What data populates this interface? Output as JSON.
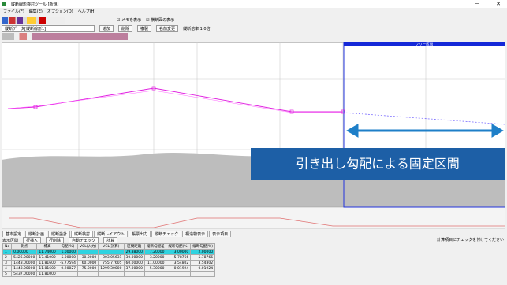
{
  "window": {
    "title": "縦断線形検討ツール [新規]"
  },
  "menu": [
    "ファイル(F)",
    "編集(E)",
    "オプション(O)",
    "ヘルプ(H)"
  ],
  "toolbar": {
    "checkboxes": [
      "メモを表示",
      "横断図の表示"
    ]
  },
  "view": {
    "combo": "縦断データ[縦断線形1]",
    "buttons": [
      "追加",
      "削除",
      "複製",
      "名前変更"
    ],
    "label": "縦断倍率 1.0倍"
  },
  "chart": {
    "selection_label": "フリー区間",
    "callout": "引き出し勾配による固定区間"
  },
  "tabs": [
    "基本設定",
    "縦断計画",
    "縦断設計",
    "縦断検討",
    "縦断レイアウト",
    "帳票出力",
    "縦断チェック",
    "構造物表示",
    "表示項目"
  ],
  "controls": {
    "label": "表示区間",
    "buttons": [
      "行挿入",
      "行削除",
      "自動チェック",
      "計算"
    ]
  },
  "table": {
    "headers": [
      "No",
      "測点",
      "標高",
      "勾配(%)",
      "VCL(入力)",
      "VCL(計算)",
      "区間距離",
      "縦断勾配差",
      "縦断勾配(%)",
      "縦断勾配(%)"
    ],
    "rows": [
      [
        "1",
        "0.00000",
        "11.74000",
        "1.00000",
        "",
        "",
        "29.88000",
        "7.20000",
        "3.00000",
        "2.00000"
      ],
      [
        "2",
        "5426.00000",
        "17.41000",
        "5.00000",
        "30.0000",
        "303.05631",
        "30.00000",
        "3.20000",
        "5.78766",
        "5.78766"
      ],
      [
        "3",
        "1448.00000",
        "11.81600",
        "-5.77594",
        "60.0000",
        "755.77605",
        "60.00000",
        "11.00000",
        "3.54802",
        "3.54802"
      ],
      [
        "4",
        "1448.00000",
        "11.81600",
        "-0.20027",
        "75.0000",
        "1299.30000",
        "37.00000",
        "5.30000",
        "0.01924",
        "0.01924"
      ],
      [
        "5",
        "5437.00000",
        "11.81000",
        "",
        "",
        "",
        "",
        "",
        "",
        ""
      ]
    ]
  },
  "status": "計算項目にチェックを付けてください"
}
